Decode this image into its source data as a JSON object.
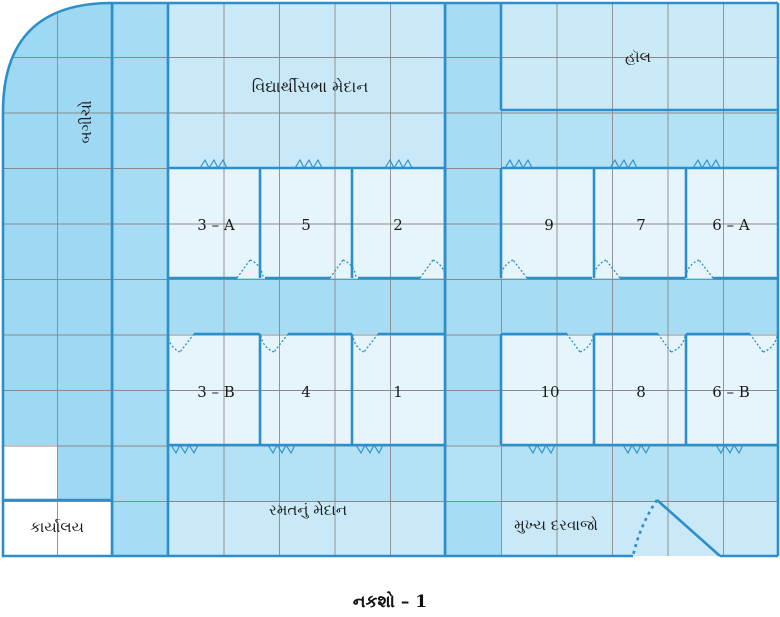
{
  "labels": {
    "assembly_ground": "વિદ્યાર્થીસભા મેદાન",
    "hall": "હૉલ",
    "garden": "બગીચો",
    "playground": "રમતનું મેદાન",
    "office": "કાર્યાલય",
    "main_gate": "મુખ્ય દરવાજો"
  },
  "rooms": {
    "r3a": "3 – A",
    "r5": "5",
    "r2": "2",
    "r9": "9",
    "r7": "7",
    "r6a": "6 – A",
    "r3b": "3 – B",
    "r4": "4",
    "r1": "1",
    "r10": "10",
    "r8": "8",
    "r6b": "6 – B"
  },
  "caption": "નકશો – 1",
  "colors": {
    "ground": "#c9e9f8",
    "road": "#a6dcf4",
    "garden": "#9fd8f3",
    "room": "#e6f5fc",
    "wall": "#2b8fcb",
    "grid": "#8a8a8a"
  }
}
